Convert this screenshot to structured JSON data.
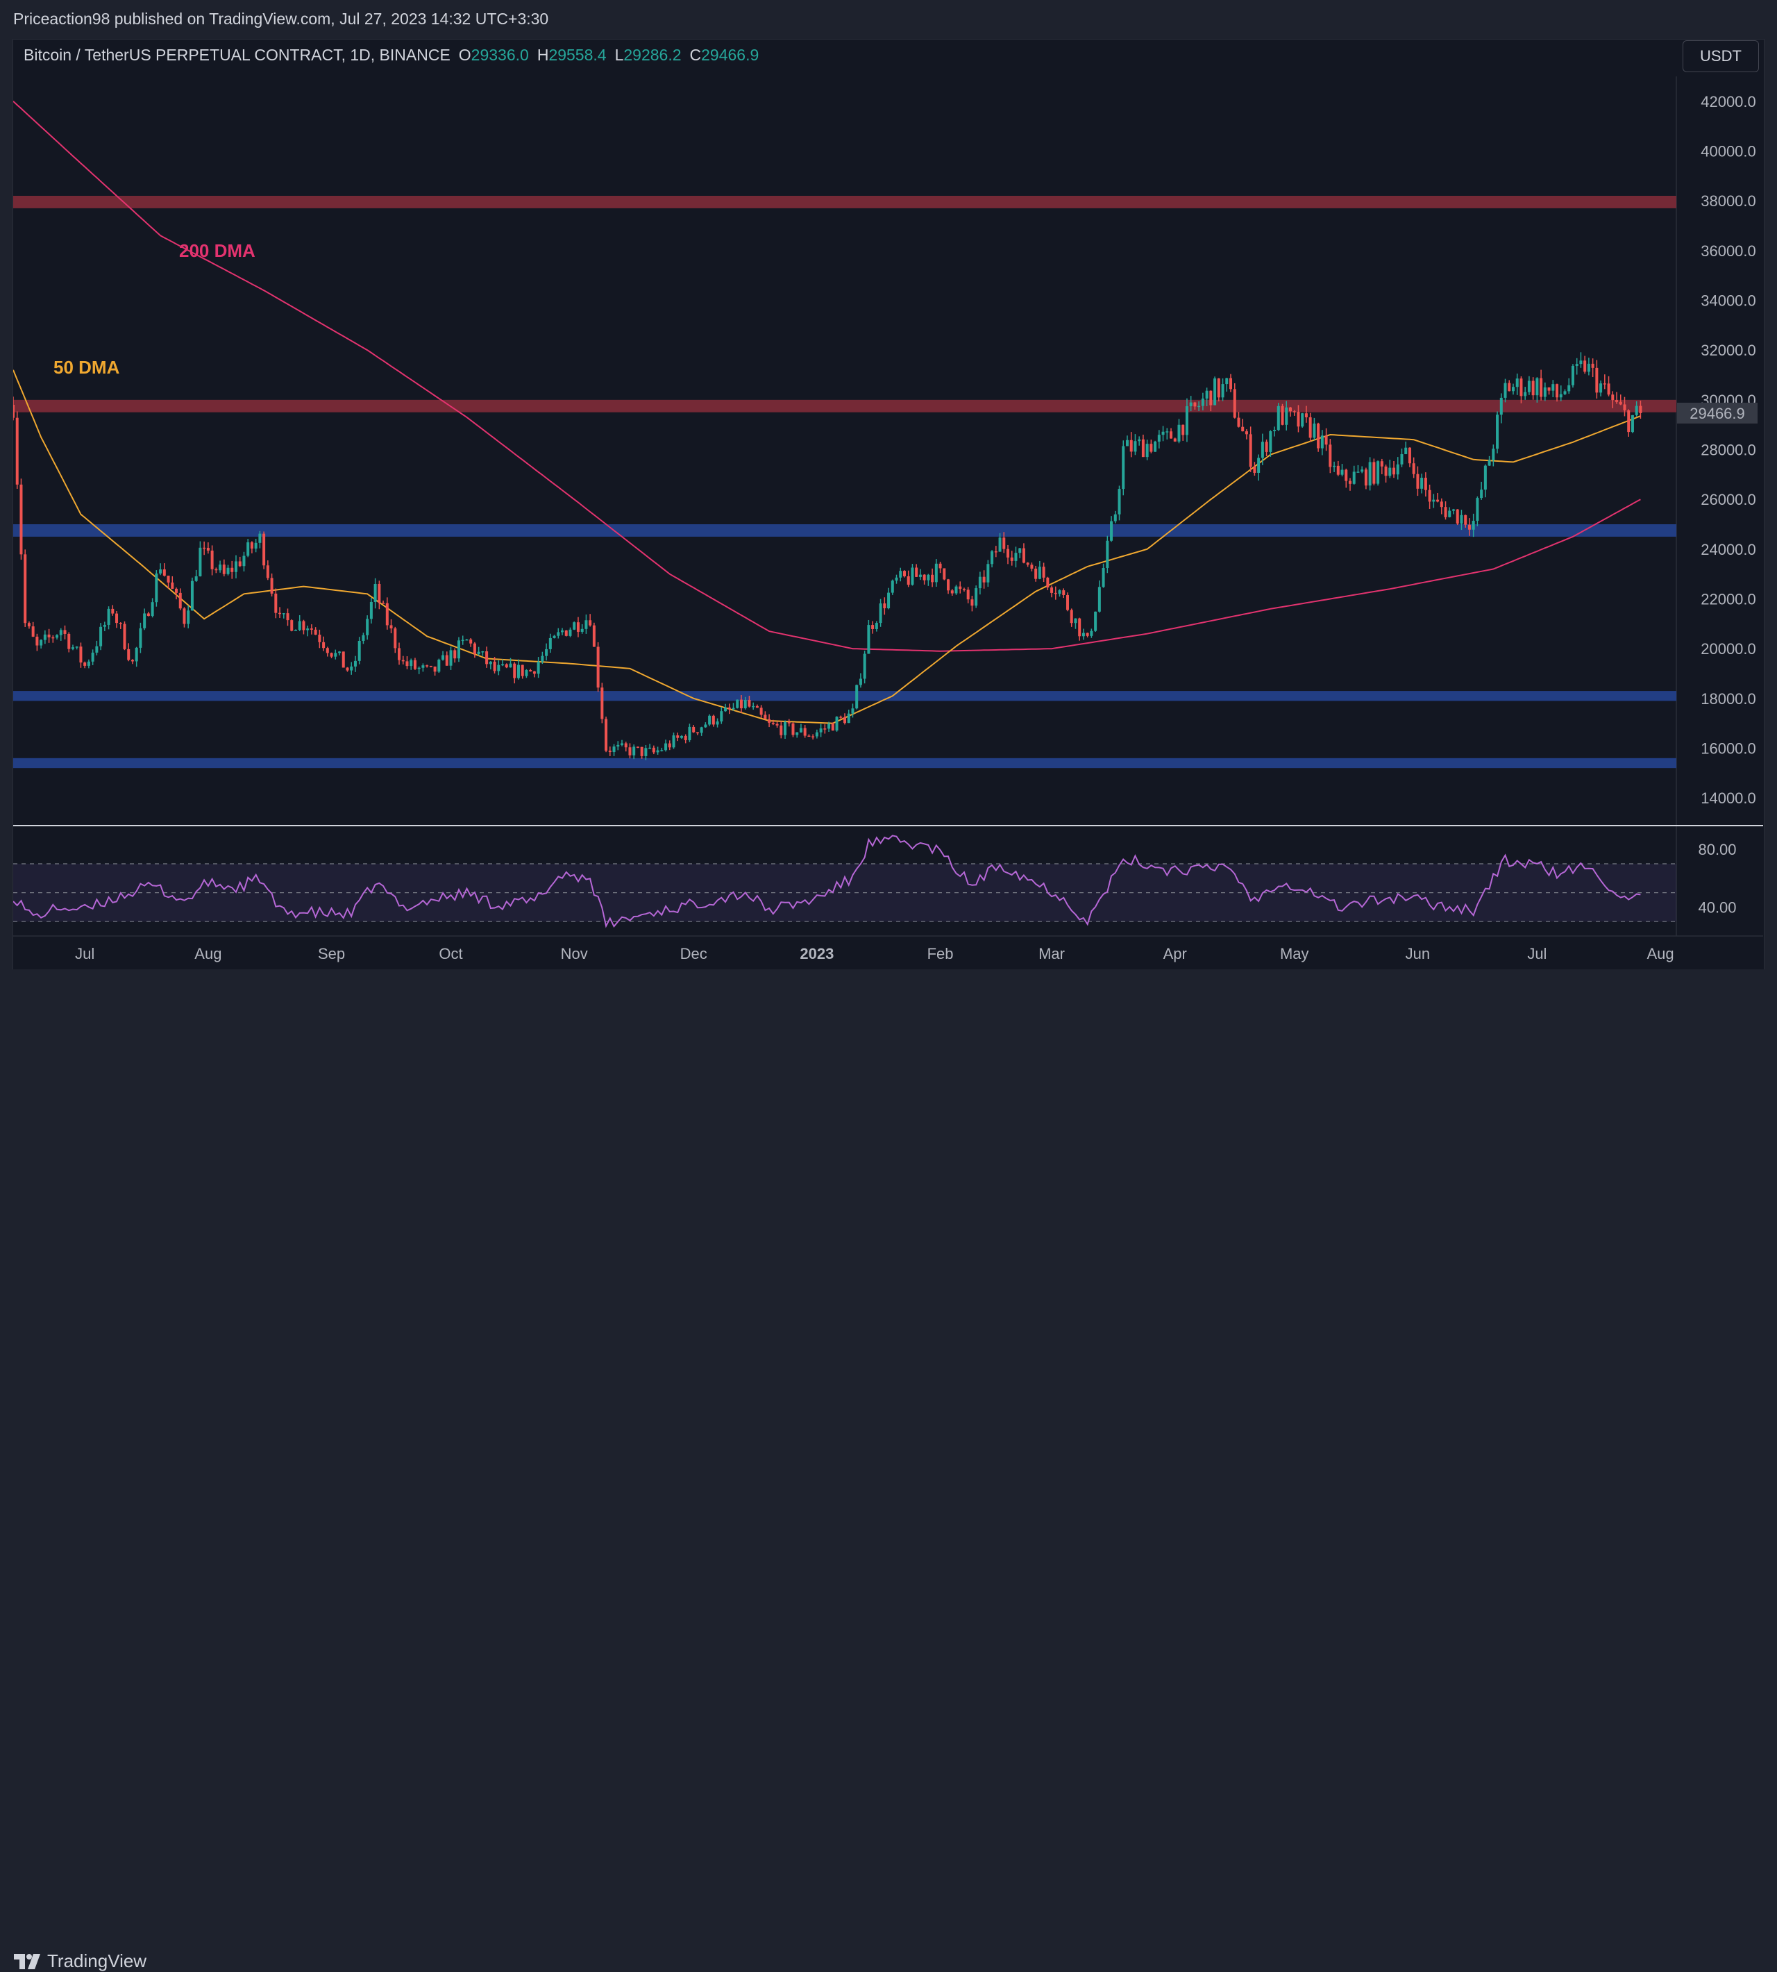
{
  "header": {
    "published_text": "Priceaction98 published on TradingView.com, Jul 27, 2023 14:32 UTC+3:30"
  },
  "legend": {
    "symbol": "Bitcoin / TetherUS PERPETUAL CONTRACT, 1D, BINANCE",
    "o_label": "O",
    "o_value": "29336.0",
    "h_label": "H",
    "h_value": "29558.4",
    "l_label": "L",
    "l_value": "29286.2",
    "c_label": "C",
    "c_value": "29466.9"
  },
  "currency_button": "USDT",
  "footer": {
    "brand": "TradingView"
  },
  "colors": {
    "up": "#26a69a",
    "down": "#ef5350",
    "ma50": "#f0a830",
    "ma200": "#e3336f",
    "rsi": "#b667d6",
    "resistance_zone": "#7a2a38",
    "support_zone": "#23408a"
  },
  "chart_data": {
    "type": "candlestick",
    "title": "Bitcoin / TetherUS PERPETUAL CONTRACT, 1D, BINANCE",
    "x_range": [
      "2022-06-13",
      "2023-08-05"
    ],
    "ylim": [
      13000,
      43000
    ],
    "y_ticks": [
      "42000.0",
      "40000.0",
      "38000.0",
      "36000.0",
      "34000.0",
      "32000.0",
      "30000.0",
      "28000.0",
      "26000.0",
      "24000.0",
      "22000.0",
      "20000.0",
      "18000.0",
      "16000.0",
      "14000.0"
    ],
    "month_ticks": [
      {
        "date": "2022-07-01",
        "label": "Jul"
      },
      {
        "date": "2022-08-01",
        "label": "Aug"
      },
      {
        "date": "2022-09-01",
        "label": "Sep"
      },
      {
        "date": "2022-10-01",
        "label": "Oct"
      },
      {
        "date": "2022-11-01",
        "label": "Nov"
      },
      {
        "date": "2022-12-01",
        "label": "Dec"
      },
      {
        "date": "2023-01-01",
        "label": "2023",
        "bold": true
      },
      {
        "date": "2023-02-01",
        "label": "Feb"
      },
      {
        "date": "2023-03-01",
        "label": "Mar"
      },
      {
        "date": "2023-04-01",
        "label": "Apr"
      },
      {
        "date": "2023-05-01",
        "label": "May"
      },
      {
        "date": "2023-06-01",
        "label": "Jun"
      },
      {
        "date": "2023-07-01",
        "label": "Jul"
      },
      {
        "date": "2023-08-01",
        "label": "Aug"
      }
    ],
    "last_price": "29466.9",
    "zones": [
      {
        "kind": "resistance",
        "low": 37700,
        "high": 38200
      },
      {
        "kind": "resistance",
        "low": 29500,
        "high": 30000
      },
      {
        "kind": "support",
        "low": 24500,
        "high": 25000
      },
      {
        "kind": "support",
        "low": 17900,
        "high": 18300
      },
      {
        "kind": "support",
        "low": 15200,
        "high": 15600
      }
    ],
    "ma_labels": {
      "ma200": "200 DMA",
      "ma50": "50 DMA"
    },
    "price_path": [
      [
        "2022-06-13",
        29800
      ],
      [
        "2022-06-16",
        21000
      ],
      [
        "2022-06-19",
        20000
      ],
      [
        "2022-06-25",
        20800
      ],
      [
        "2022-07-01",
        19300
      ],
      [
        "2022-07-08",
        21600
      ],
      [
        "2022-07-13",
        19400
      ],
      [
        "2022-07-20",
        23400
      ],
      [
        "2022-07-26",
        21200
      ],
      [
        "2022-07-30",
        23900
      ],
      [
        "2022-08-05",
        22900
      ],
      [
        "2022-08-14",
        24400
      ],
      [
        "2022-08-19",
        21100
      ],
      [
        "2022-08-26",
        21000
      ],
      [
        "2022-09-06",
        19000
      ],
      [
        "2022-09-12",
        22300
      ],
      [
        "2022-09-19",
        19400
      ],
      [
        "2022-09-26",
        19000
      ],
      [
        "2022-10-05",
        20300
      ],
      [
        "2022-10-12",
        19100
      ],
      [
        "2022-10-21",
        19100
      ],
      [
        "2022-10-29",
        20700
      ],
      [
        "2022-11-05",
        21300
      ],
      [
        "2022-11-09",
        16000
      ],
      [
        "2022-11-21",
        15800
      ],
      [
        "2022-12-05",
        17100
      ],
      [
        "2022-12-14",
        17800
      ],
      [
        "2022-12-20",
        16900
      ],
      [
        "2022-12-31",
        16550
      ],
      [
        "2023-01-10",
        17400
      ],
      [
        "2023-01-14",
        20800
      ],
      [
        "2023-01-21",
        22700
      ],
      [
        "2023-01-31",
        23100
      ],
      [
        "2023-02-09",
        21800
      ],
      [
        "2023-02-16",
        24300
      ],
      [
        "2023-02-25",
        23200
      ],
      [
        "2023-03-03",
        22300
      ],
      [
        "2023-03-10",
        20200
      ],
      [
        "2023-03-17",
        25500
      ],
      [
        "2023-03-19",
        28000
      ],
      [
        "2023-03-30",
        28400
      ],
      [
        "2023-04-10",
        30300
      ],
      [
        "2023-04-14",
        30500
      ],
      [
        "2023-04-21",
        27300
      ],
      [
        "2023-04-27",
        29400
      ],
      [
        "2023-05-06",
        28800
      ],
      [
        "2023-05-12",
        26800
      ],
      [
        "2023-05-22",
        27100
      ],
      [
        "2023-05-29",
        27700
      ],
      [
        "2023-06-05",
        25800
      ],
      [
        "2023-06-15",
        25100
      ],
      [
        "2023-06-20",
        28300
      ],
      [
        "2023-06-23",
        30500
      ],
      [
        "2023-07-01",
        30600
      ],
      [
        "2023-07-06",
        30100
      ],
      [
        "2023-07-13",
        31400
      ],
      [
        "2023-07-20",
        29900
      ],
      [
        "2023-07-24",
        29200
      ],
      [
        "2023-07-27",
        29466.9
      ]
    ],
    "ma50_path": [
      [
        "2022-06-13",
        31200
      ],
      [
        "2022-06-20",
        28500
      ],
      [
        "2022-06-30",
        25400
      ],
      [
        "2022-07-15",
        23400
      ],
      [
        "2022-07-31",
        21200
      ],
      [
        "2022-08-10",
        22200
      ],
      [
        "2022-08-25",
        22500
      ],
      [
        "2022-09-10",
        22200
      ],
      [
        "2022-09-25",
        20500
      ],
      [
        "2022-10-10",
        19600
      ],
      [
        "2022-10-31",
        19400
      ],
      [
        "2022-11-15",
        19200
      ],
      [
        "2022-12-01",
        18000
      ],
      [
        "2022-12-20",
        17100
      ],
      [
        "2023-01-05",
        17000
      ],
      [
        "2023-01-20",
        18100
      ],
      [
        "2023-02-05",
        20100
      ],
      [
        "2023-02-25",
        22300
      ],
      [
        "2023-03-10",
        23300
      ],
      [
        "2023-03-25",
        24000
      ],
      [
        "2023-04-10",
        26000
      ],
      [
        "2023-04-25",
        27800
      ],
      [
        "2023-05-10",
        28600
      ],
      [
        "2023-05-31",
        28400
      ],
      [
        "2023-06-15",
        27600
      ],
      [
        "2023-06-25",
        27500
      ],
      [
        "2023-07-10",
        28300
      ],
      [
        "2023-07-27",
        29350
      ]
    ],
    "ma200_path": [
      [
        "2022-06-13",
        42000
      ],
      [
        "2022-06-28",
        39800
      ],
      [
        "2022-07-20",
        36600
      ],
      [
        "2022-08-15",
        34400
      ],
      [
        "2022-09-10",
        32000
      ],
      [
        "2022-10-05",
        29300
      ],
      [
        "2022-11-01",
        26000
      ],
      [
        "2022-11-25",
        23000
      ],
      [
        "2022-12-20",
        20700
      ],
      [
        "2023-01-10",
        20000
      ],
      [
        "2023-02-01",
        19900
      ],
      [
        "2023-03-01",
        20000
      ],
      [
        "2023-03-25",
        20600
      ],
      [
        "2023-04-25",
        21600
      ],
      [
        "2023-05-25",
        22400
      ],
      [
        "2023-06-20",
        23200
      ],
      [
        "2023-07-10",
        24500
      ],
      [
        "2023-07-27",
        26000
      ]
    ],
    "rsi": {
      "ylim": [
        20,
        95
      ],
      "y_ticks": [
        "80.00",
        "40.00"
      ],
      "bands": [
        70,
        50,
        30
      ],
      "path": [
        [
          "2022-06-13",
          48
        ],
        [
          "2022-06-18",
          33
        ],
        [
          "2022-06-25",
          40
        ],
        [
          "2022-07-01",
          38
        ],
        [
          "2022-07-09",
          47
        ],
        [
          "2022-07-18",
          55
        ],
        [
          "2022-07-26",
          44
        ],
        [
          "2022-08-01",
          57
        ],
        [
          "2022-08-08",
          53
        ],
        [
          "2022-08-14",
          60
        ],
        [
          "2022-08-19",
          37
        ],
        [
          "2022-08-28",
          36
        ],
        [
          "2022-09-06",
          35
        ],
        [
          "2022-09-12",
          57
        ],
        [
          "2022-09-19",
          40
        ],
        [
          "2022-09-28",
          46
        ],
        [
          "2022-10-05",
          50
        ],
        [
          "2022-10-12",
          42
        ],
        [
          "2022-10-22",
          44
        ],
        [
          "2022-10-29",
          63
        ],
        [
          "2022-11-05",
          60
        ],
        [
          "2022-11-09",
          28
        ],
        [
          "2022-11-20",
          36
        ],
        [
          "2022-12-01",
          42
        ],
        [
          "2022-12-14",
          50
        ],
        [
          "2022-12-20",
          38
        ],
        [
          "2022-12-31",
          45
        ],
        [
          "2023-01-10",
          60
        ],
        [
          "2023-01-14",
          84
        ],
        [
          "2023-01-21",
          86
        ],
        [
          "2023-01-31",
          80
        ],
        [
          "2023-02-09",
          55
        ],
        [
          "2023-02-16",
          70
        ],
        [
          "2023-02-25",
          57
        ],
        [
          "2023-03-03",
          48
        ],
        [
          "2023-03-10",
          30
        ],
        [
          "2023-03-17",
          63
        ],
        [
          "2023-03-20",
          73
        ],
        [
          "2023-03-30",
          66
        ],
        [
          "2023-04-10",
          66
        ],
        [
          "2023-04-14",
          70
        ],
        [
          "2023-04-21",
          44
        ],
        [
          "2023-04-27",
          58
        ],
        [
          "2023-05-06",
          50
        ],
        [
          "2023-05-12",
          40
        ],
        [
          "2023-05-22",
          45
        ],
        [
          "2023-05-29",
          47
        ],
        [
          "2023-06-05",
          42
        ],
        [
          "2023-06-15",
          38
        ],
        [
          "2023-06-20",
          60
        ],
        [
          "2023-06-23",
          72
        ],
        [
          "2023-07-01",
          69
        ],
        [
          "2023-07-06",
          63
        ],
        [
          "2023-07-13",
          68
        ],
        [
          "2023-07-20",
          53
        ],
        [
          "2023-07-24",
          43
        ],
        [
          "2023-07-27",
          47
        ]
      ]
    }
  }
}
